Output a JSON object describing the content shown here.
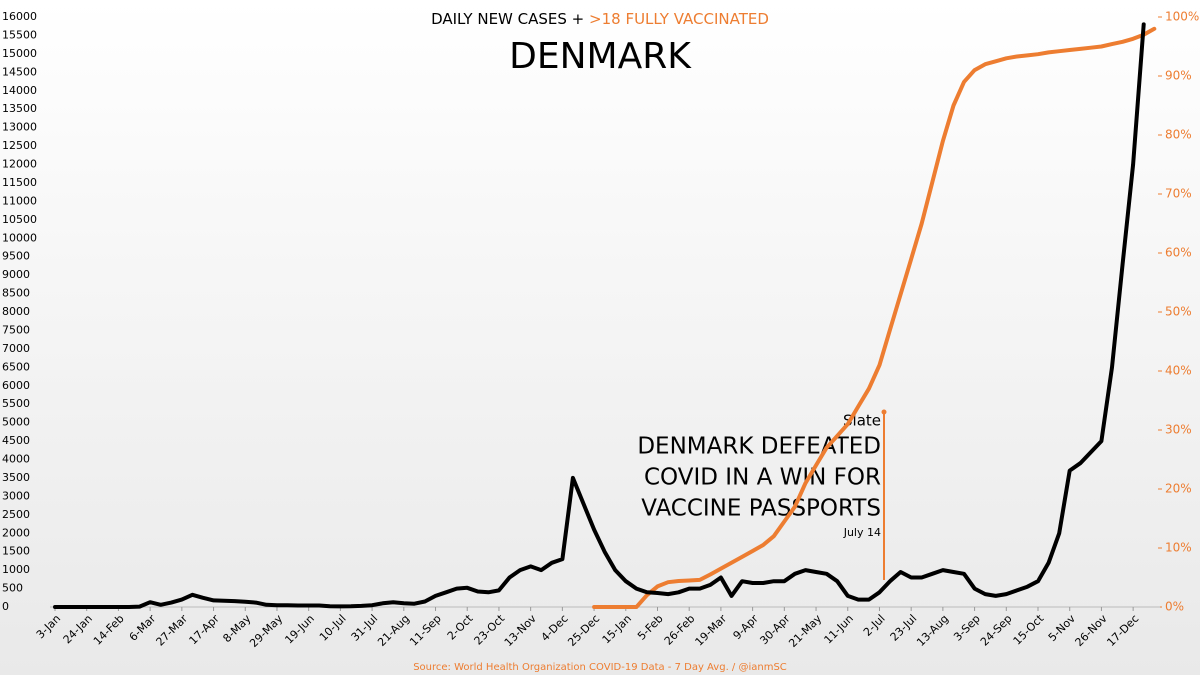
{
  "chart_data": {
    "type": "line",
    "title": "DAILY NEW CASES +",
    "title_highlight": ">18 FULLY VACCINATED",
    "subtitle": "DENMARK",
    "source": "Source: World Health Organization COVID-19 Data - 7 Day Avg. / @ianmSC",
    "annotation": {
      "outlet": "Slate",
      "headline": [
        "DENMARK DEFEATED",
        "COVID IN A WIN FOR",
        "VACCINE PASSPORTS"
      ],
      "date": "July 14"
    },
    "categories": [
      "3-Jan",
      null,
      null,
      "24-Jan",
      null,
      null,
      "14-Feb",
      null,
      null,
      "6-Mar",
      null,
      null,
      "27-Mar",
      null,
      null,
      "17-Apr",
      null,
      null,
      "8-May",
      null,
      null,
      "29-May",
      null,
      null,
      "19-Jun",
      null,
      null,
      "10-Jul",
      null,
      null,
      "31-Jul",
      null,
      null,
      "21-Aug",
      null,
      null,
      "11-Sep",
      null,
      null,
      "2-Oct",
      null,
      null,
      "23-Oct",
      null,
      null,
      "13-Nov",
      null,
      null,
      "4-Dec",
      null,
      null,
      "25-Dec",
      null,
      null,
      "15-Jan",
      null,
      null,
      "5-Feb",
      null,
      null,
      "26-Feb",
      null,
      null,
      "19-Mar",
      null,
      null,
      "9-Apr",
      null,
      null,
      "30-Apr",
      null,
      null,
      "21-May",
      null,
      null,
      "11-Jun",
      null,
      null,
      "2-Jul",
      null,
      null,
      "23-Jul",
      null,
      null,
      "13-Aug",
      null,
      null,
      "3-Sep",
      null,
      null,
      "24-Sep",
      null,
      null,
      "15-Oct",
      null,
      null,
      "5-Nov",
      null,
      null,
      "26-Nov",
      null,
      null,
      "17-Dec",
      null,
      null
    ],
    "series": [
      {
        "color": "#000000",
        "values": [
          0,
          0,
          0,
          0,
          0,
          0,
          0,
          0,
          10,
          130,
          60,
          120,
          200,
          330,
          250,
          180,
          170,
          160,
          140,
          120,
          60,
          50,
          45,
          40,
          40,
          40,
          20,
          15,
          20,
          30,
          50,
          100,
          130,
          100,
          90,
          150,
          300,
          400,
          500,
          520,
          420,
          400,
          450,
          800,
          1000,
          1100,
          1000,
          1200,
          1300,
          3500,
          2800,
          2100,
          1500,
          1000,
          700,
          500,
          400,
          380,
          350,
          400,
          500,
          500,
          600,
          800,
          300,
          700,
          650,
          650,
          700,
          700,
          900,
          1000,
          950,
          900,
          700,
          300,
          200,
          200,
          400,
          700,
          950,
          800,
          800,
          900,
          1000,
          950,
          900,
          500,
          350,
          300,
          350,
          450,
          550,
          700,
          1200,
          2000,
          3700,
          3900,
          4200,
          4500,
          6500,
          9300,
          12000,
          15800,
          null
        ]
      },
      {
        "color": "#ed7d31",
        "axis": "y2",
        "values": [
          null,
          null,
          null,
          null,
          null,
          null,
          null,
          null,
          null,
          null,
          null,
          null,
          null,
          null,
          null,
          null,
          null,
          null,
          null,
          null,
          null,
          null,
          null,
          null,
          null,
          null,
          null,
          null,
          null,
          null,
          null,
          null,
          null,
          null,
          null,
          null,
          null,
          null,
          null,
          null,
          null,
          null,
          null,
          null,
          null,
          null,
          null,
          null,
          null,
          null,
          null,
          0,
          0,
          0,
          0,
          0,
          2,
          3.5,
          4.2,
          4.4,
          4.5,
          4.6,
          5.5,
          6.5,
          7.5,
          8.5,
          9.5,
          10.5,
          12,
          14.5,
          17,
          21,
          24,
          27,
          29,
          31,
          34,
          37,
          41,
          47,
          53,
          59,
          65,
          72,
          79,
          85,
          89,
          91,
          92,
          92.5,
          93,
          93.3,
          93.5,
          93.7,
          94,
          94.2,
          94.4,
          94.6,
          94.8,
          95,
          95.4,
          95.8,
          96.3,
          97,
          98
        ]
      }
    ],
    "ylim": [
      0,
      16000
    ],
    "yticks": [
      0,
      500,
      1000,
      1500,
      2000,
      2500,
      3000,
      3500,
      4000,
      4500,
      5000,
      5500,
      6000,
      6500,
      7000,
      7500,
      8000,
      8500,
      9000,
      9500,
      10000,
      10500,
      11000,
      11500,
      12000,
      12500,
      13000,
      13500,
      14000,
      14500,
      15000,
      15500,
      16000
    ],
    "y2lim": [
      0,
      100
    ],
    "y2ticks": [
      {
        "value": 0,
        "label": "0%"
      },
      {
        "value": 10,
        "label": "10%"
      },
      {
        "value": 20,
        "label": "20%"
      },
      {
        "value": 30,
        "label": "30%"
      },
      {
        "value": 40,
        "label": "40%"
      },
      {
        "value": 50,
        "label": "50%"
      },
      {
        "value": 60,
        "label": "60%"
      },
      {
        "value": 70,
        "label": "70%"
      },
      {
        "value": 80,
        "label": "80%"
      },
      {
        "value": 90,
        "label": "90%"
      },
      {
        "value": 100,
        "label": "100%"
      }
    ],
    "grid": false
  }
}
